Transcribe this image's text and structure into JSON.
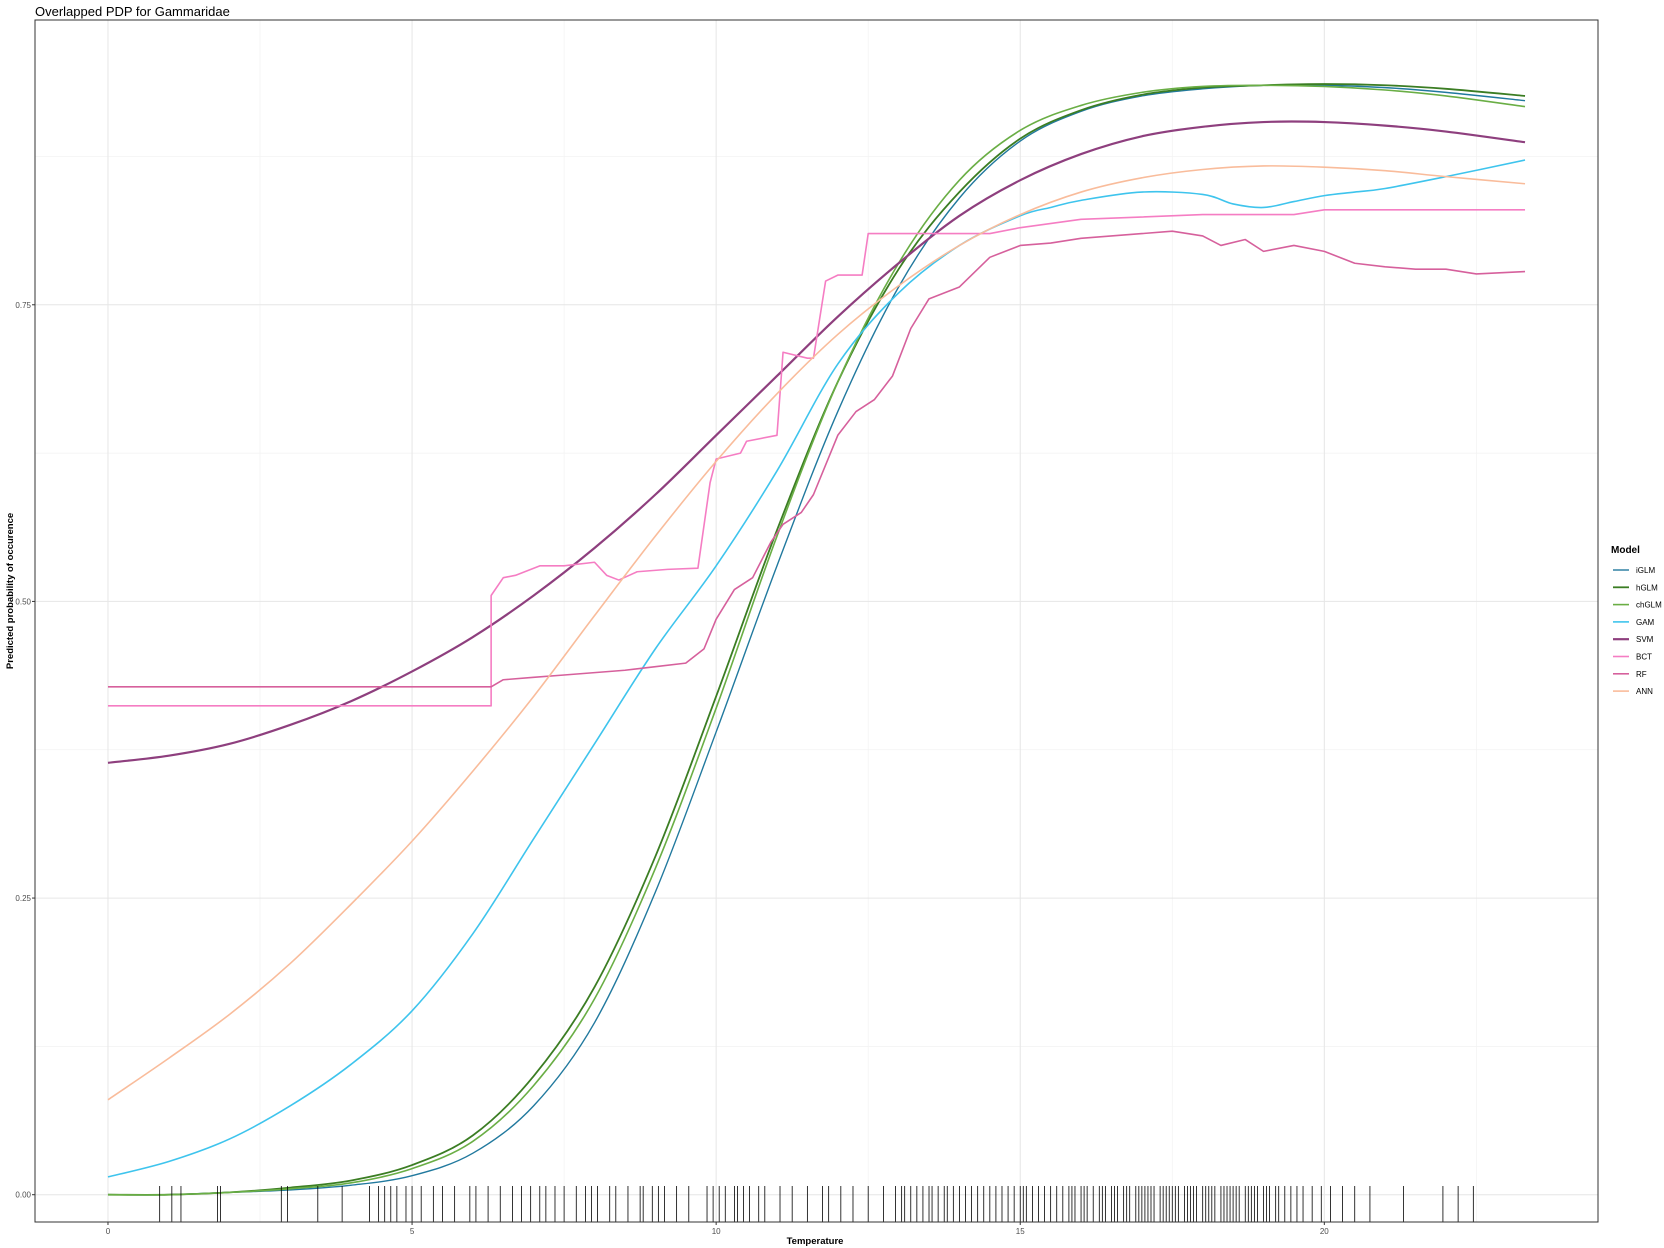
{
  "chart_data": {
    "type": "line",
    "title": "Overlapped PDP for Gammaridae",
    "xlabel": "Temperature",
    "ylabel": "Predicted probability of occurence",
    "xlim": [
      -1.2,
      24.5
    ],
    "ylim": [
      -0.023,
      0.99
    ],
    "x_ticks": [
      0,
      5,
      10,
      15,
      20
    ],
    "x_tick_labels": [
      "0",
      "5",
      "10",
      "15",
      "20"
    ],
    "y_ticks": [
      0.0,
      0.25,
      0.5,
      0.75
    ],
    "y_tick_labels": [
      "0.00",
      "0.25",
      "0.50",
      "0.75"
    ],
    "grid": true,
    "legend": {
      "title": "Model",
      "position": "right"
    },
    "series": [
      {
        "name": "iGLM",
        "color": "#21799e",
        "width": 1.4,
        "smooth": true,
        "x": [
          0,
          1,
          2,
          3,
          4,
          5,
          6,
          7,
          8,
          9,
          10,
          11,
          12,
          13,
          14,
          15,
          16,
          17,
          18,
          19,
          20,
          21,
          22,
          23.3
        ],
        "y": [
          0.0,
          0.0,
          0.002,
          0.004,
          0.008,
          0.016,
          0.035,
          0.075,
          0.145,
          0.255,
          0.39,
          0.53,
          0.66,
          0.765,
          0.84,
          0.888,
          0.913,
          0.926,
          0.932,
          0.935,
          0.935,
          0.933,
          0.929,
          0.922
        ]
      },
      {
        "name": "hGLM",
        "color": "#3b7d23",
        "width": 1.8,
        "smooth": true,
        "x": [
          0,
          1,
          2,
          3,
          4,
          5,
          6,
          7,
          8,
          9,
          10,
          11,
          12,
          13,
          14,
          15,
          16,
          17,
          18,
          19,
          20,
          21,
          22,
          23.3
        ],
        "y": [
          0.0,
          0.0,
          0.002,
          0.006,
          0.012,
          0.025,
          0.05,
          0.1,
          0.175,
          0.285,
          0.42,
          0.56,
          0.685,
          0.78,
          0.845,
          0.89,
          0.914,
          0.927,
          0.933,
          0.935,
          0.936,
          0.935,
          0.932,
          0.926
        ]
      },
      {
        "name": "chGLM",
        "color": "#6aae45",
        "width": 1.6,
        "smooth": true,
        "x": [
          0,
          1,
          2,
          3,
          4,
          5,
          6,
          7,
          8,
          9,
          10,
          11,
          12,
          13,
          14,
          15,
          16,
          17,
          18,
          19,
          20,
          21,
          22,
          23.3
        ],
        "y": [
          0.0,
          0.0,
          0.002,
          0.005,
          0.01,
          0.022,
          0.045,
          0.092,
          0.165,
          0.275,
          0.41,
          0.555,
          0.685,
          0.785,
          0.855,
          0.897,
          0.918,
          0.929,
          0.934,
          0.935,
          0.934,
          0.931,
          0.926,
          0.917
        ]
      },
      {
        "name": "GAM",
        "color": "#3ec4ed",
        "width": 1.6,
        "smooth": true,
        "x": [
          0,
          1,
          2,
          3,
          4,
          5,
          6,
          7,
          8,
          9,
          10,
          11,
          12,
          13,
          14,
          15,
          15.5,
          16,
          17,
          18,
          18.5,
          19,
          19.5,
          20,
          20.5,
          21,
          22,
          23.3
        ],
        "y": [
          0.015,
          0.028,
          0.047,
          0.075,
          0.11,
          0.155,
          0.22,
          0.3,
          0.38,
          0.46,
          0.53,
          0.61,
          0.7,
          0.76,
          0.8,
          0.825,
          0.832,
          0.838,
          0.845,
          0.843,
          0.835,
          0.832,
          0.837,
          0.842,
          0.845,
          0.848,
          0.858,
          0.872
        ]
      },
      {
        "name": "SVM",
        "color": "#8e3f7e",
        "width": 2.2,
        "smooth": true,
        "x": [
          0,
          1,
          2,
          3,
          4,
          5,
          6,
          7,
          8,
          9,
          10,
          11,
          12,
          13,
          14,
          15,
          16,
          17,
          18,
          19,
          20,
          21,
          22,
          23.3
        ],
        "y": [
          0.364,
          0.37,
          0.38,
          0.396,
          0.416,
          0.441,
          0.47,
          0.505,
          0.545,
          0.59,
          0.64,
          0.69,
          0.74,
          0.785,
          0.825,
          0.855,
          0.877,
          0.892,
          0.9,
          0.904,
          0.904,
          0.901,
          0.896,
          0.887
        ]
      },
      {
        "name": "BCT",
        "color": "#f57dc3",
        "width": 1.6,
        "smooth": false,
        "x": [
          0,
          6.3,
          6.3,
          6.5,
          6.7,
          7.1,
          7.5,
          8.0,
          8.2,
          8.4,
          8.7,
          9.2,
          9.7,
          9.9,
          10.0,
          10.4,
          10.5,
          11.0,
          11.1,
          11.5,
          11.6,
          11.8,
          12.0,
          12.4,
          12.5,
          14.5,
          15.0,
          16.0,
          18.0,
          19.5,
          20.0,
          21.0,
          22.0,
          23.3
        ],
        "y": [
          0.412,
          0.412,
          0.505,
          0.52,
          0.522,
          0.53,
          0.53,
          0.533,
          0.522,
          0.518,
          0.525,
          0.527,
          0.528,
          0.6,
          0.62,
          0.625,
          0.635,
          0.64,
          0.71,
          0.705,
          0.705,
          0.77,
          0.775,
          0.775,
          0.81,
          0.81,
          0.815,
          0.822,
          0.826,
          0.826,
          0.83,
          0.83,
          0.83,
          0.83
        ]
      },
      {
        "name": "RF",
        "color": "#d6609c",
        "width": 1.6,
        "smooth": false,
        "x": [
          0,
          6.3,
          6.5,
          7.0,
          7.5,
          8.0,
          8.5,
          9.0,
          9.5,
          9.8,
          10.0,
          10.3,
          10.6,
          10.9,
          11.1,
          11.4,
          11.6,
          12.0,
          12.3,
          12.6,
          12.9,
          13.2,
          13.5,
          14.0,
          14.5,
          15.0,
          15.5,
          16.0,
          16.5,
          17.0,
          17.5,
          18.0,
          18.3,
          18.7,
          19.0,
          19.5,
          20.0,
          20.5,
          21.0,
          21.5,
          22.0,
          22.5,
          23.3
        ],
        "y": [
          0.428,
          0.428,
          0.434,
          0.436,
          0.438,
          0.44,
          0.442,
          0.445,
          0.448,
          0.46,
          0.485,
          0.51,
          0.52,
          0.55,
          0.565,
          0.575,
          0.59,
          0.64,
          0.66,
          0.67,
          0.69,
          0.73,
          0.755,
          0.765,
          0.79,
          0.8,
          0.802,
          0.806,
          0.808,
          0.81,
          0.812,
          0.808,
          0.8,
          0.805,
          0.795,
          0.8,
          0.795,
          0.785,
          0.782,
          0.78,
          0.78,
          0.776,
          0.778
        ]
      },
      {
        "name": "ANN",
        "color": "#f9bc9b",
        "width": 1.6,
        "smooth": true,
        "x": [
          0,
          1,
          2,
          3,
          4,
          5,
          6,
          7,
          8,
          9,
          10,
          11,
          12,
          13,
          14,
          15,
          16,
          17,
          18,
          19,
          20,
          21,
          22,
          23.3
        ],
        "y": [
          0.08,
          0.115,
          0.152,
          0.195,
          0.245,
          0.298,
          0.357,
          0.42,
          0.488,
          0.555,
          0.618,
          0.675,
          0.725,
          0.766,
          0.8,
          0.826,
          0.845,
          0.857,
          0.864,
          0.867,
          0.866,
          0.863,
          0.858,
          0.852
        ]
      }
    ],
    "rug": {
      "color": "#000000",
      "x": [
        0.85,
        1.05,
        1.2,
        1.8,
        1.85,
        2.85,
        2.95,
        3.45,
        3.85,
        4.3,
        4.45,
        4.55,
        4.65,
        4.75,
        4.9,
        5.0,
        5.15,
        5.35,
        5.5,
        5.7,
        5.95,
        6.05,
        6.25,
        6.45,
        6.65,
        6.8,
        6.95,
        7.1,
        7.2,
        7.35,
        7.5,
        7.7,
        7.85,
        7.95,
        8.05,
        8.25,
        8.35,
        8.55,
        8.75,
        8.8,
        8.95,
        9.05,
        9.15,
        9.35,
        9.55,
        9.85,
        9.95,
        10.05,
        10.15,
        10.3,
        10.35,
        10.45,
        10.55,
        10.7,
        10.8,
        11.05,
        11.25,
        11.5,
        11.75,
        11.85,
        12.05,
        12.25,
        12.5,
        12.75,
        12.95,
        13.05,
        13.1,
        13.2,
        13.3,
        13.4,
        13.5,
        13.55,
        13.65,
        13.75,
        13.8,
        13.9,
        14.0,
        14.1,
        14.2,
        14.3,
        14.4,
        14.5,
        14.6,
        14.7,
        14.8,
        14.9,
        15.0,
        15.05,
        15.1,
        15.2,
        15.3,
        15.4,
        15.5,
        15.6,
        15.7,
        15.8,
        15.85,
        15.9,
        16.0,
        16.05,
        16.1,
        16.2,
        16.3,
        16.35,
        16.4,
        16.5,
        16.55,
        16.6,
        16.7,
        16.75,
        16.8,
        16.9,
        16.95,
        17.0,
        17.05,
        17.1,
        17.15,
        17.2,
        17.3,
        17.35,
        17.4,
        17.45,
        17.5,
        17.55,
        17.6,
        17.7,
        17.75,
        17.8,
        17.85,
        17.9,
        18.0,
        18.05,
        18.1,
        18.15,
        18.2,
        18.3,
        18.35,
        18.4,
        18.45,
        18.5,
        18.55,
        18.6,
        18.7,
        18.75,
        18.8,
        18.85,
        18.9,
        19.0,
        19.05,
        19.1,
        19.2,
        19.25,
        19.35,
        19.45,
        19.55,
        19.65,
        19.8,
        19.95,
        20.1,
        20.3,
        20.5,
        20.75,
        21.3,
        21.95,
        22.2,
        22.45
      ]
    }
  }
}
